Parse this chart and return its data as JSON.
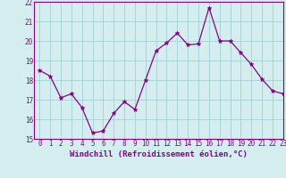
{
  "x": [
    0,
    1,
    2,
    3,
    4,
    5,
    6,
    7,
    8,
    9,
    10,
    11,
    12,
    13,
    14,
    15,
    16,
    17,
    18,
    19,
    20,
    21,
    22,
    23
  ],
  "y": [
    18.5,
    18.2,
    17.1,
    17.3,
    16.6,
    15.3,
    15.4,
    16.3,
    16.9,
    16.5,
    18.0,
    19.5,
    19.9,
    20.4,
    19.8,
    19.85,
    21.7,
    20.0,
    20.0,
    19.4,
    18.8,
    18.05,
    17.45,
    17.3
  ],
  "line_color": "#880088",
  "marker": "*",
  "marker_size": 3.5,
  "bg_color": "#d4eef0",
  "grid_color": "#aad4d8",
  "xlabel": "Windchill (Refroidissement éolien,°C)",
  "ylim": [
    15,
    22
  ],
  "xlim": [
    -0.5,
    23
  ],
  "yticks": [
    15,
    16,
    17,
    18,
    19,
    20,
    21,
    22
  ],
  "xticks": [
    0,
    1,
    2,
    3,
    4,
    5,
    6,
    7,
    8,
    9,
    10,
    11,
    12,
    13,
    14,
    15,
    16,
    17,
    18,
    19,
    20,
    21,
    22,
    23
  ],
  "label_fontsize": 6.5,
  "tick_fontsize": 5.5
}
